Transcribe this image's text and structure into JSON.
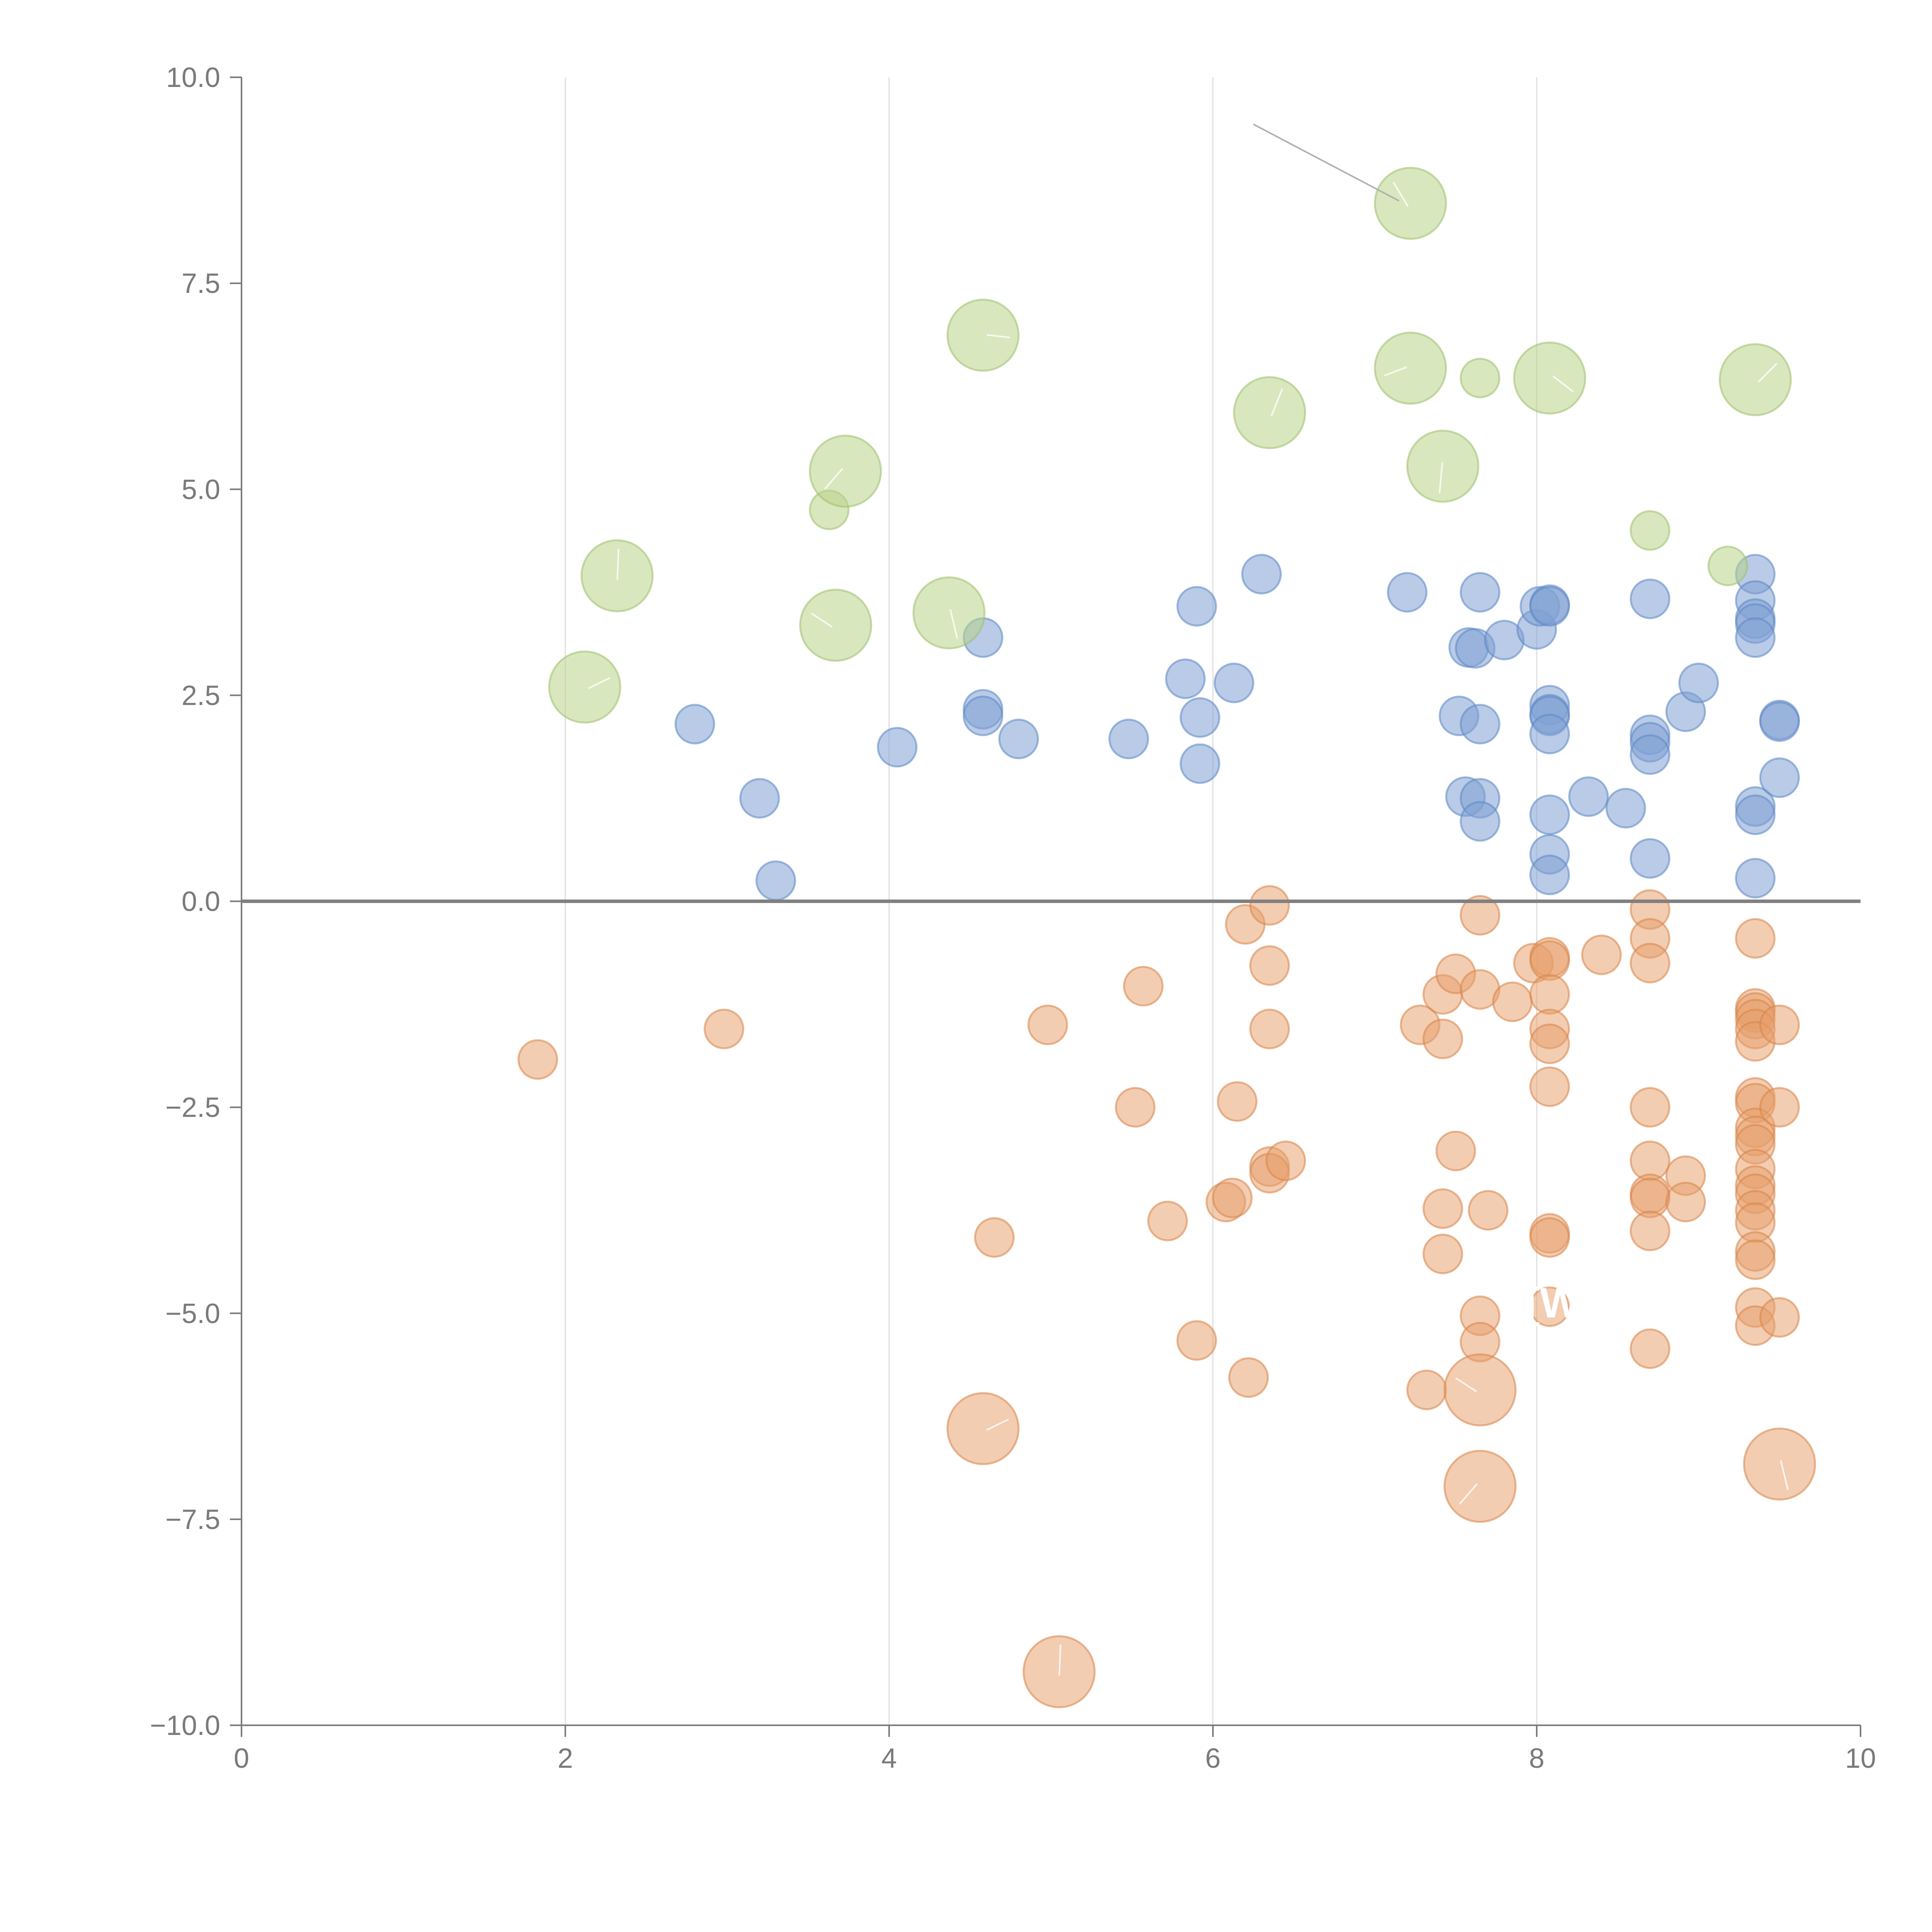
{
  "chart_data": {
    "type": "scatter",
    "title": "",
    "xlabel": "",
    "ylabel": "",
    "xlim": [
      0,
      10
    ],
    "ylim": [
      -10,
      10
    ],
    "x_ticks": [
      0,
      2,
      4,
      6,
      8,
      10
    ],
    "x_tick_labels": [
      "0",
      "2",
      "4",
      "6",
      "8",
      "10"
    ],
    "y_ticks": [
      10,
      7.5,
      5,
      2.5,
      0,
      -2.5,
      -5,
      -7.5,
      -10
    ],
    "y_tick_labels": [
      "10.0",
      "7.5",
      "5.0",
      "2.5",
      "0.0",
      "−2.5",
      "−5.0",
      "−7.5",
      "−10.0"
    ],
    "grid": "vertical lines at x ticks",
    "reference_line": {
      "y": 0
    },
    "colors": {
      "positive": "#7fa1d3",
      "negative": "#e7a06b",
      "large": "#b9d38a"
    },
    "series": [
      {
        "name": "positive",
        "marker_size": "small",
        "points": [
          [
            2.8,
            2.15
          ],
          [
            3.2,
            1.25
          ],
          [
            3.3,
            0.25
          ],
          [
            4.05,
            1.87
          ],
          [
            4.58,
            2.33
          ],
          [
            4.58,
            2.25
          ],
          [
            4.58,
            3.2
          ],
          [
            4.8,
            1.97
          ],
          [
            5.48,
            1.97
          ],
          [
            5.83,
            2.7
          ],
          [
            5.9,
            3.58
          ],
          [
            5.92,
            2.23
          ],
          [
            5.92,
            1.67
          ],
          [
            6.13,
            2.65
          ],
          [
            6.3,
            3.97
          ],
          [
            7.2,
            3.75
          ],
          [
            7.52,
            2.25
          ],
          [
            7.56,
            1.27
          ],
          [
            7.58,
            3.08
          ],
          [
            7.62,
            3.07
          ],
          [
            7.65,
            3.75
          ],
          [
            7.65,
            2.15
          ],
          [
            7.65,
            1.25
          ],
          [
            7.65,
            0.97
          ],
          [
            7.8,
            3.17
          ],
          [
            8.0,
            3.3
          ],
          [
            8.02,
            3.58
          ],
          [
            8.08,
            3.6
          ],
          [
            8.08,
            3.58
          ],
          [
            8.08,
            2.38
          ],
          [
            8.08,
            2.27
          ],
          [
            8.08,
            2.25
          ],
          [
            8.08,
            2.03
          ],
          [
            8.08,
            1.05
          ],
          [
            8.08,
            0.57
          ],
          [
            8.08,
            0.32
          ],
          [
            8.32,
            1.27
          ],
          [
            8.55,
            1.13
          ],
          [
            8.7,
            3.67
          ],
          [
            8.7,
            2.02
          ],
          [
            8.7,
            1.93
          ],
          [
            8.7,
            1.78
          ],
          [
            8.7,
            0.52
          ],
          [
            8.92,
            2.3
          ],
          [
            9.0,
            2.65
          ],
          [
            9.35,
            3.97
          ],
          [
            9.35,
            3.65
          ],
          [
            9.35,
            3.43
          ],
          [
            9.35,
            3.37
          ],
          [
            9.35,
            3.2
          ],
          [
            9.35,
            1.15
          ],
          [
            9.35,
            1.05
          ],
          [
            9.35,
            0.28
          ],
          [
            9.5,
            2.2
          ],
          [
            9.5,
            2.18
          ],
          [
            9.5,
            1.5
          ]
        ]
      },
      {
        "name": "negative",
        "marker_size": "small",
        "points": [
          [
            1.83,
            -1.92
          ],
          [
            2.98,
            -1.55
          ],
          [
            4.65,
            -4.08
          ],
          [
            4.98,
            -1.5
          ],
          [
            5.52,
            -2.5
          ],
          [
            5.57,
            -1.03
          ],
          [
            5.72,
            -3.88
          ],
          [
            5.9,
            -5.33
          ],
          [
            6.08,
            -3.65
          ],
          [
            6.12,
            -3.6
          ],
          [
            6.15,
            -2.43
          ],
          [
            6.2,
            -0.28
          ],
          [
            6.22,
            -5.78
          ],
          [
            6.35,
            -0.05
          ],
          [
            6.35,
            -0.78
          ],
          [
            6.35,
            -1.55
          ],
          [
            6.35,
            -3.22
          ],
          [
            6.35,
            -3.3
          ],
          [
            6.45,
            -3.15
          ],
          [
            7.28,
            -1.5
          ],
          [
            7.32,
            -5.93
          ],
          [
            7.42,
            -1.13
          ],
          [
            7.42,
            -1.67
          ],
          [
            7.42,
            -3.73
          ],
          [
            7.42,
            -4.28
          ],
          [
            7.5,
            -0.88
          ],
          [
            7.5,
            -3.03
          ],
          [
            7.65,
            -0.17
          ],
          [
            7.65,
            -1.07
          ],
          [
            7.65,
            -5.03
          ],
          [
            7.65,
            -5.35
          ],
          [
            7.7,
            -3.75
          ],
          [
            7.85,
            -1.22
          ],
          [
            7.98,
            -0.75
          ],
          [
            8.08,
            -0.68
          ],
          [
            8.08,
            -0.72
          ],
          [
            8.08,
            -1.13
          ],
          [
            8.08,
            -1.55
          ],
          [
            8.08,
            -1.73
          ],
          [
            8.08,
            -2.25
          ],
          [
            8.08,
            -4.03
          ],
          [
            8.08,
            -4.08
          ],
          [
            8.08,
            -4.92
          ],
          [
            8.4,
            -0.65
          ],
          [
            8.7,
            -0.1
          ],
          [
            8.7,
            -0.45
          ],
          [
            8.7,
            -0.75
          ],
          [
            8.7,
            -2.5
          ],
          [
            8.7,
            -3.15
          ],
          [
            8.7,
            -3.55
          ],
          [
            8.7,
            -3.6
          ],
          [
            8.7,
            -4.0
          ],
          [
            8.7,
            -5.43
          ],
          [
            8.92,
            -3.33
          ],
          [
            8.92,
            -3.65
          ],
          [
            9.35,
            -0.45
          ],
          [
            9.35,
            -1.3
          ],
          [
            9.35,
            -1.35
          ],
          [
            9.35,
            -1.43
          ],
          [
            9.35,
            -1.55
          ],
          [
            9.35,
            -1.7
          ],
          [
            9.35,
            -2.38
          ],
          [
            9.35,
            -2.45
          ],
          [
            9.35,
            -2.75
          ],
          [
            9.35,
            -2.85
          ],
          [
            9.35,
            -2.95
          ],
          [
            9.35,
            -3.25
          ],
          [
            9.35,
            -3.45
          ],
          [
            9.35,
            -3.55
          ],
          [
            9.35,
            -3.75
          ],
          [
            9.35,
            -3.9
          ],
          [
            9.35,
            -4.25
          ],
          [
            9.35,
            -4.35
          ],
          [
            9.35,
            -4.93
          ],
          [
            9.35,
            -5.15
          ],
          [
            9.5,
            -1.5
          ],
          [
            9.5,
            -2.5
          ],
          [
            9.5,
            -5.05
          ]
        ]
      },
      {
        "name": "positive-small-green",
        "marker_size": "small",
        "points": [
          [
            3.63,
            4.75
          ],
          [
            7.65,
            6.35
          ],
          [
            8.7,
            4.5
          ],
          [
            9.18,
            4.07
          ]
        ]
      },
      {
        "name": "large-positive",
        "marker_size": "large",
        "points": [
          [
            2.12,
            2.6
          ],
          [
            2.32,
            3.95
          ],
          [
            3.67,
            3.35
          ],
          [
            3.73,
            5.22
          ],
          [
            4.37,
            3.5
          ],
          [
            4.58,
            6.87
          ],
          [
            6.35,
            5.93
          ],
          [
            7.22,
            8.47
          ],
          [
            7.22,
            6.47
          ],
          [
            7.42,
            5.28
          ],
          [
            8.08,
            6.35
          ],
          [
            9.35,
            6.33
          ]
        ]
      },
      {
        "name": "large-negative",
        "marker_size": "large",
        "points": [
          [
            4.58,
            -6.4
          ],
          [
            5.05,
            -9.35
          ],
          [
            7.65,
            -5.93
          ],
          [
            7.65,
            -7.1
          ],
          [
            9.5,
            -6.83
          ]
        ]
      }
    ],
    "annotations": [
      {
        "type": "leader-line",
        "from": [
          6.25,
          9.43
        ],
        "to": [
          7.15,
          8.5
        ]
      },
      {
        "type": "text",
        "text": "[W",
        "at": [
          8.1,
          -5.05
        ]
      }
    ]
  }
}
